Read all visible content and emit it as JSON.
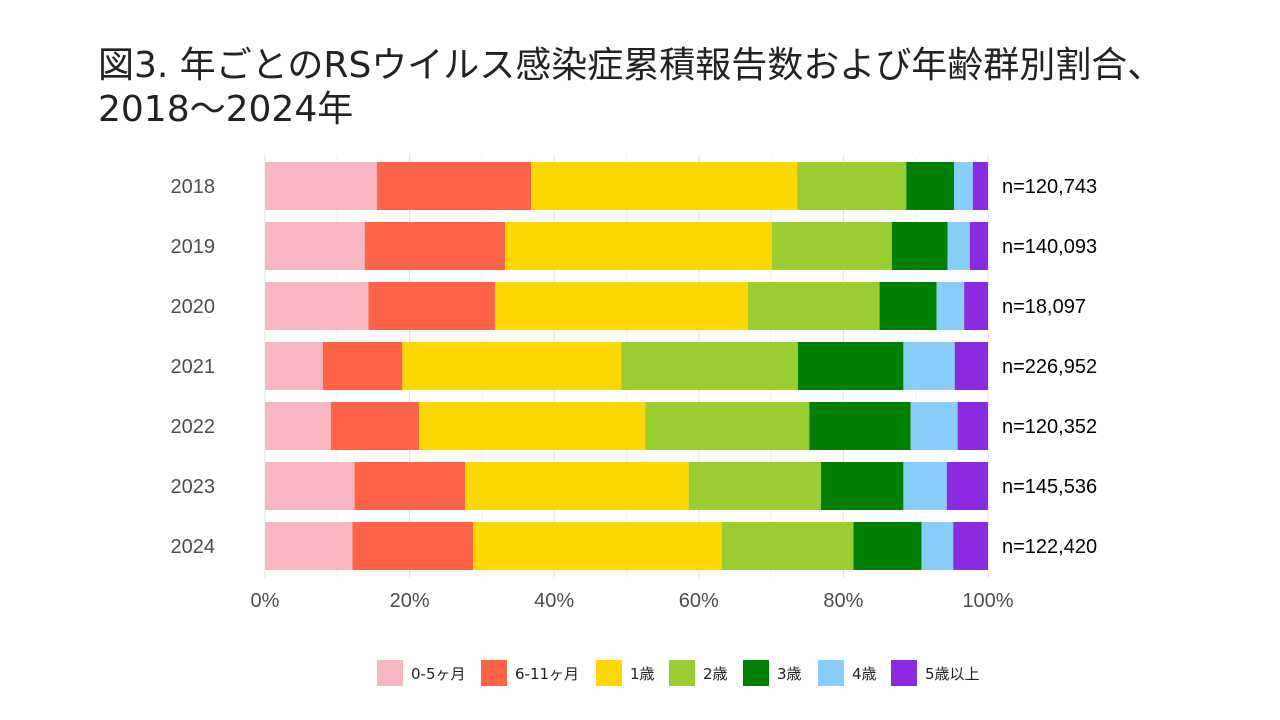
{
  "title": {
    "line1": "図3. 年ごとのRSウイルス感染症累積報告数および年齢群別割合、",
    "line2": "2018〜2024年"
  },
  "chart_data": {
    "type": "bar",
    "orientation": "horizontal",
    "stacked": "percent",
    "categories": [
      "2018",
      "2019",
      "2020",
      "2021",
      "2022",
      "2023",
      "2024"
    ],
    "n_labels": [
      "n=120,743",
      "n=140,093",
      "n=18,097",
      "n=226,952",
      "n=120,352",
      "n=145,536",
      "n=122,420"
    ],
    "xlim": [
      0,
      100
    ],
    "x_ticks": [
      0,
      20,
      40,
      60,
      80,
      100
    ],
    "x_tick_labels": [
      "0%",
      "20%",
      "40%",
      "60%",
      "80%",
      "100%"
    ],
    "grid": true,
    "legend_position": "bottom",
    "series": [
      {
        "name": "0-5ヶ月",
        "color": "#F8B6C1",
        "values": [
          15.5,
          13.8,
          14.3,
          8.0,
          9.1,
          12.4,
          12.1
        ]
      },
      {
        "name": "6-11ヶ月",
        "color": "#FF6347",
        "values": [
          21.3,
          19.4,
          17.5,
          11.0,
          12.2,
          15.3,
          16.7
        ]
      },
      {
        "name": "1歳",
        "color": "#FFD700",
        "values": [
          36.8,
          36.9,
          35.0,
          30.3,
          31.3,
          30.9,
          34.4
        ]
      },
      {
        "name": "2歳",
        "color": "#9ACD32",
        "values": [
          15.1,
          16.6,
          18.2,
          24.4,
          22.7,
          18.3,
          18.2
        ]
      },
      {
        "name": "3歳",
        "color": "#008000",
        "values": [
          6.6,
          7.7,
          7.9,
          14.6,
          14.0,
          11.4,
          9.4
        ]
      },
      {
        "name": "4歳",
        "color": "#87CEFA",
        "values": [
          2.6,
          3.1,
          3.8,
          7.1,
          6.5,
          6.0,
          4.4
        ]
      },
      {
        "name": "5歳以上",
        "color": "#8A2BE2",
        "values": [
          2.1,
          2.5,
          3.3,
          4.6,
          4.2,
          5.7,
          4.8
        ]
      }
    ]
  }
}
